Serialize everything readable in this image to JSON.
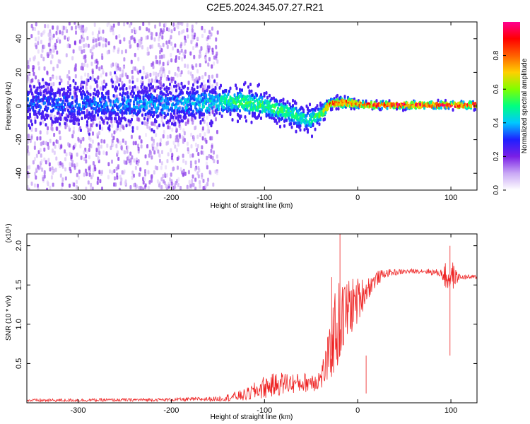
{
  "title": "C2E5.2024.345.07.27.R21",
  "chart_data": [
    {
      "type": "heatmap",
      "title": "C2E5.2024.345.07.27.R21",
      "xlabel": "Height of straight line (km)",
      "ylabel": "Frequency (Hz)",
      "xlim": [
        -355,
        128
      ],
      "ylim": [
        -50,
        50
      ],
      "x_ticks": [
        -300,
        -200,
        -100,
        0,
        100
      ],
      "y_ticks": [
        -40,
        -20,
        0,
        20,
        40
      ],
      "colorbar": {
        "label": "Normalized spectral amplitude",
        "range": [
          0.0,
          1.0
        ],
        "ticks": [
          0.0,
          0.2,
          0.4,
          0.6,
          0.8
        ],
        "tick_labels": [
          "0.0",
          "0.2",
          "0.4",
          "0.6",
          "0.8"
        ],
        "colormap": [
          "#ffffff",
          "#c9a8f5",
          "#7a1fe6",
          "#1f1fff",
          "#00c8ff",
          "#00ff80",
          "#80ff00",
          "#ffd000",
          "#ff6000",
          "#ff0000",
          "#ff0090"
        ]
      },
      "ridge": {
        "x": [
          -355,
          -300,
          -250,
          -200,
          -160,
          -140,
          -120,
          -100,
          -80,
          -60,
          -50,
          -40,
          -30,
          -20,
          -10,
          0,
          20,
          60,
          100,
          128
        ],
        "center_hz": [
          2,
          1,
          1,
          1,
          2,
          3,
          2,
          0,
          -3,
          -7,
          -8,
          -5,
          1,
          2,
          2,
          1,
          0.5,
          0.5,
          0.5,
          0.5
        ],
        "peak_amplitude": [
          0.35,
          0.35,
          0.38,
          0.4,
          0.45,
          0.5,
          0.55,
          0.55,
          0.55,
          0.5,
          0.5,
          0.55,
          0.85,
          0.9,
          0.9,
          0.9,
          0.95,
          0.95,
          0.95,
          0.95
        ],
        "spread_hz": [
          8,
          8,
          8,
          8,
          7,
          6,
          6,
          5,
          5,
          5,
          5,
          4,
          2,
          2,
          2,
          1.5,
          1.5,
          1.5,
          1.5,
          1.5
        ]
      },
      "noise_region_x": [
        -355,
        -150
      ],
      "noise_amplitude": 0.12
    },
    {
      "type": "line",
      "xlabel": "Height of straight line (km)",
      "ylabel": "SNR (10 * v/v)",
      "y_scale_label": "(x10⁴)",
      "color": "#ee2222",
      "xlim": [
        -355,
        128
      ],
      "ylim": [
        0,
        2.15
      ],
      "x_ticks": [
        -300,
        -200,
        -100,
        0,
        100
      ],
      "y_ticks": [
        0.5,
        1.0,
        1.5,
        2.0
      ],
      "y_tick_labels": [
        "0.5",
        "1.0",
        "1.5",
        "2.0"
      ],
      "envelope": {
        "x": [
          -355,
          -200,
          -150,
          -120,
          -100,
          -80,
          -60,
          -40,
          -30,
          -25,
          -20,
          -15,
          -10,
          -5,
          0,
          10,
          20,
          30,
          50,
          70,
          90,
          95,
          100,
          105,
          110,
          128
        ],
        "mean": [
          0.03,
          0.04,
          0.05,
          0.1,
          0.2,
          0.25,
          0.25,
          0.3,
          0.6,
          0.9,
          1.0,
          1.1,
          1.2,
          1.25,
          1.3,
          1.45,
          1.58,
          1.65,
          1.67,
          1.68,
          1.65,
          1.6,
          1.62,
          1.6,
          1.6,
          1.6
        ],
        "noise": [
          0.02,
          0.02,
          0.03,
          0.08,
          0.15,
          0.15,
          0.12,
          0.15,
          0.35,
          0.55,
          0.55,
          0.45,
          0.4,
          0.35,
          0.3,
          0.15,
          0.1,
          0.05,
          0.03,
          0.03,
          0.05,
          0.2,
          0.25,
          0.1,
          0.03,
          0.03
        ]
      },
      "spikes": [
        {
          "x": -19,
          "y": 2.15
        },
        {
          "x": 9,
          "y": 0.12
        },
        {
          "x": 99,
          "y": 2.0
        },
        {
          "x": -28,
          "y": 1.6
        }
      ]
    }
  ]
}
